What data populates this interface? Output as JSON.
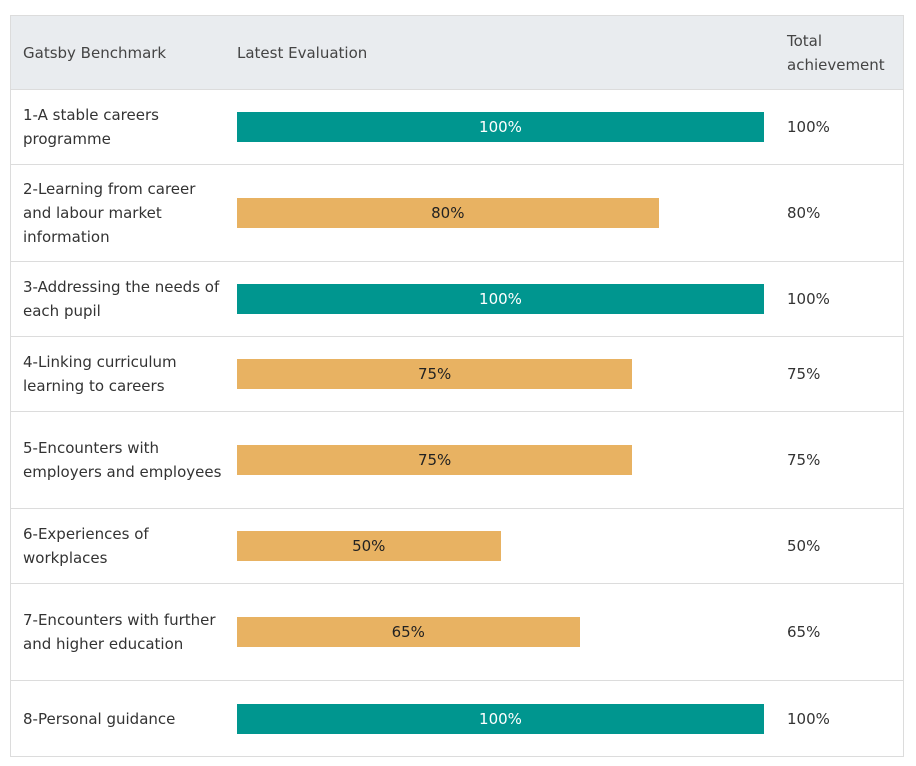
{
  "header": {
    "benchmark": "Gatsby Benchmark",
    "evaluation": "Latest Evaluation",
    "total": "Total achievement"
  },
  "colors": {
    "complete": "#00968f",
    "partial": "#e8b262"
  },
  "chart_data": {
    "type": "bar",
    "categories": [
      "1-A stable careers programme",
      "2-Learning from career and labour market information",
      "3-Addressing the needs of each pupil",
      "4-Linking curriculum learning to careers",
      "5-Encounters with employers and employees",
      "6-Experiences of workplaces",
      "7-Encounters with further and higher education",
      "8-Personal guidance"
    ],
    "values": [
      100,
      80,
      100,
      75,
      75,
      50,
      65,
      100
    ],
    "labels": [
      "100%",
      "80%",
      "100%",
      "75%",
      "75%",
      "50%",
      "65%",
      "100%"
    ],
    "xlim": [
      0,
      100
    ],
    "grid": false,
    "orientation": "horizontal"
  }
}
